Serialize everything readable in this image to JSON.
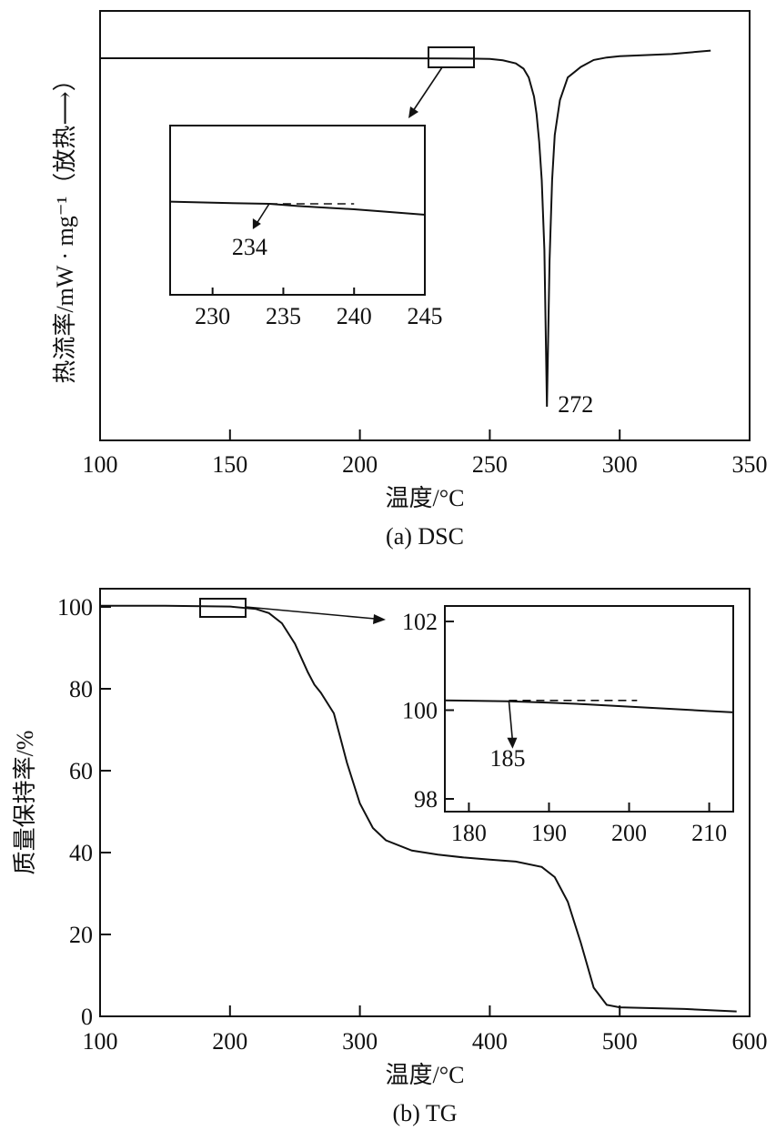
{
  "chart_data": [
    {
      "id": "dsc",
      "type": "line",
      "caption": "(a) DSC",
      "xlabel": "温度/°C",
      "ylabel": "热流率/mW · mg⁻¹（放热⟶）",
      "xlim": [
        100,
        350
      ],
      "xticks": [
        100,
        150,
        200,
        250,
        300,
        350
      ],
      "yticks": [],
      "series": [
        {
          "x": [
            100,
            150,
            200,
            220,
            235,
            245,
            250,
            255,
            260,
            263,
            265,
            267,
            268,
            269,
            270,
            271,
            272,
            273,
            274,
            275,
            277,
            280,
            285,
            290,
            295,
            300,
            320,
            335
          ],
          "y": [
            0,
            0,
            0,
            0.02,
            0.05,
            0.12,
            0.22,
            0.6,
            1.5,
            3.0,
            5.5,
            11,
            16,
            24,
            35,
            55,
            100,
            58,
            35,
            22,
            12,
            5.5,
            2.5,
            0.5,
            -0.2,
            -0.6,
            -1.2,
            -2.2
          ]
        }
      ],
      "annotations": [
        {
          "text": "272",
          "x": 272
        }
      ],
      "inset": {
        "xlim": [
          227,
          245
        ],
        "xticks": [
          230,
          235,
          240,
          245
        ],
        "series": [
          {
            "x": [
              227,
              230,
              234,
              236,
              238,
              240,
              242,
              245
            ],
            "y": [
              0.2,
              0.1,
              0.0,
              -0.2,
              -0.35,
              -0.5,
              -0.7,
              -1.0
            ]
          }
        ],
        "baseline": {
          "x": [
            234,
            240
          ],
          "y": 0.0
        },
        "annotations": [
          {
            "text": "234",
            "x": 234
          }
        ]
      }
    },
    {
      "id": "tg",
      "type": "line",
      "caption": "(b) TG",
      "xlabel": "温度/°C",
      "ylabel": "质量保持率/%",
      "xlim": [
        100,
        600
      ],
      "ylim": [
        0,
        105
      ],
      "xticks": [
        100,
        200,
        300,
        400,
        500,
        600
      ],
      "yticks": [
        0,
        20,
        40,
        60,
        80,
        100
      ],
      "series": [
        {
          "x": [
            100,
            150,
            200,
            220,
            230,
            240,
            250,
            260,
            265,
            270,
            280,
            285,
            290,
            300,
            310,
            320,
            340,
            360,
            380,
            400,
            420,
            440,
            450,
            460,
            470,
            480,
            490,
            500,
            550,
            590
          ],
          "y": [
            100.3,
            100.3,
            100.1,
            99.5,
            98.5,
            96,
            91,
            84,
            81,
            79,
            74,
            68,
            62,
            52,
            46,
            43,
            40.5,
            39.5,
            38.8,
            38.3,
            37.8,
            36.5,
            34,
            28,
            18,
            7,
            2.8,
            2.2,
            1.8,
            1.2
          ]
        }
      ],
      "inset": {
        "xlim": [
          177,
          213
        ],
        "ylim": [
          97.8,
          102.4
        ],
        "xticks": [
          180,
          190,
          200,
          210
        ],
        "yticks": [
          98,
          100,
          102
        ],
        "series": [
          {
            "x": [
              177,
              185,
              190,
              195,
              200,
              205,
              210,
              213
            ],
            "y": [
              100.22,
              100.2,
              100.17,
              100.13,
              100.08,
              100.03,
              99.98,
              99.95
            ]
          }
        ],
        "baseline": {
          "x": [
            185,
            201
          ],
          "y": 100.22
        },
        "annotations": [
          {
            "text": "185",
            "x": 185
          }
        ]
      }
    }
  ]
}
